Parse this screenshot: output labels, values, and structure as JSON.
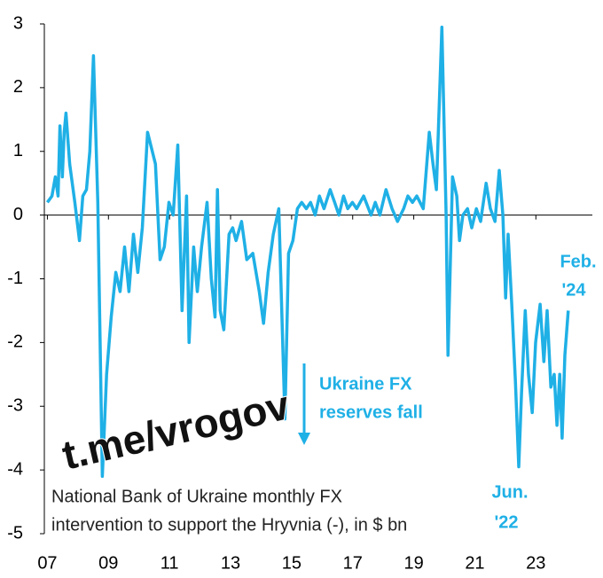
{
  "chart_data": {
    "type": "line",
    "color": "#1fb0e6",
    "x": [
      2007.0,
      2007.15,
      2007.26,
      2007.35,
      2007.41,
      2007.49,
      2007.55,
      2007.61,
      2007.73,
      2007.9,
      2008.05,
      2008.16,
      2008.28,
      2008.39,
      2008.51,
      2008.65,
      2008.8,
      2008.94,
      2009.09,
      2009.24,
      2009.38,
      2009.53,
      2009.67,
      2009.82,
      2009.96,
      2010.11,
      2010.28,
      2010.54,
      2010.69,
      2010.83,
      2010.98,
      2011.12,
      2011.27,
      2011.41,
      2011.56,
      2011.64,
      2011.79,
      2011.91,
      2012.05,
      2012.23,
      2012.37,
      2012.49,
      2012.57,
      2012.66,
      2012.78,
      2012.95,
      2013.07,
      2013.18,
      2013.36,
      2013.53,
      2013.73,
      2013.94,
      2014.08,
      2014.23,
      2014.4,
      2014.58,
      2014.78,
      2014.9,
      2015.04,
      2015.19,
      2015.33,
      2015.48,
      2015.62,
      2015.77,
      2015.91,
      2016.06,
      2016.26,
      2016.41,
      2016.55,
      2016.7,
      2016.84,
      2016.99,
      2017.13,
      2017.36,
      2017.6,
      2017.74,
      2017.89,
      2018.09,
      2018.29,
      2018.47,
      2018.67,
      2018.81,
      2018.96,
      2019.1,
      2019.31,
      2019.51,
      2019.63,
      2019.74,
      2019.92,
      2020.06,
      2020.12,
      2020.27,
      2020.41,
      2020.5,
      2020.61,
      2020.76,
      2020.9,
      2021.05,
      2021.19,
      2021.37,
      2021.51,
      2021.66,
      2021.8,
      2021.92,
      2022.01,
      2022.09,
      2022.21,
      2022.33,
      2022.44,
      2022.53,
      2022.65,
      2022.76,
      2022.88,
      2022.99,
      2023.14,
      2023.26,
      2023.37,
      2023.49,
      2023.6,
      2023.69,
      2023.78,
      2023.86,
      2023.95,
      2024.06
    ],
    "values": [
      0.2,
      0.3,
      0.6,
      0.3,
      1.4,
      0.6,
      1.3,
      1.6,
      0.8,
      0.2,
      -0.4,
      0.3,
      0.4,
      1.0,
      2.5,
      0.2,
      -4.1,
      -2.5,
      -1.6,
      -0.9,
      -1.2,
      -0.5,
      -1.2,
      -0.3,
      -0.9,
      -0.2,
      1.3,
      0.8,
      -0.7,
      -0.5,
      0.2,
      0,
      1.1,
      -1.5,
      0.3,
      -2.0,
      -0.5,
      -1.2,
      -0.5,
      0.2,
      -1.0,
      -1.6,
      0.4,
      -1.5,
      -1.8,
      -0.3,
      -0.2,
      -0.4,
      -0.1,
      -0.7,
      -0.6,
      -1.2,
      -1.7,
      -0.9,
      -0.3,
      0.1,
      -3.2,
      -0.6,
      -0.4,
      0.1,
      0.2,
      0.1,
      0.2,
      0,
      0.3,
      0.1,
      0.4,
      0.2,
      0,
      0.3,
      0.1,
      0.2,
      0.1,
      0.3,
      0,
      0.2,
      0,
      0.4,
      0.1,
      -0.1,
      0.1,
      0.3,
      0.2,
      0.3,
      0.1,
      1.3,
      0.8,
      0.4,
      2.95,
      0,
      -2.2,
      0.6,
      0.3,
      -0.4,
      0,
      0.1,
      -0.2,
      0.1,
      -0.1,
      0.5,
      0.1,
      -0.1,
      0.7,
      0,
      -1.3,
      -0.3,
      -1.4,
      -2.6,
      -3.95,
      -2.8,
      -1.5,
      -2.5,
      -3.1,
      -2.0,
      -1.4,
      -2.3,
      -1.5,
      -2.7,
      -2.5,
      -3.3,
      -2.5,
      -3.5,
      -2.2,
      -1.5
    ],
    "xlim": [
      2006.9,
      2024.85
    ],
    "xticks": [
      {
        "value": 2007,
        "label": "07"
      },
      {
        "value": 2009,
        "label": "09"
      },
      {
        "value": 2011,
        "label": "11"
      },
      {
        "value": 2013,
        "label": "13"
      },
      {
        "value": 2015,
        "label": "15"
      },
      {
        "value": 2017,
        "label": "17"
      },
      {
        "value": 2019,
        "label": "19"
      },
      {
        "value": 2021,
        "label": "21"
      },
      {
        "value": 2023,
        "label": "23"
      }
    ],
    "ylim": [
      -5,
      3
    ],
    "yticks": [
      -5,
      -4,
      -3,
      -2,
      -1,
      0,
      1,
      2,
      3
    ],
    "annotations": [
      "Ukraine FX",
      "reserves fall",
      "Jun.",
      "'22",
      "Feb.",
      "'24"
    ],
    "caption": [
      "National Bank of Ukraine monthly FX",
      "intervention to support the Hryvnia (-), in $ bn"
    ],
    "watermark": "t.me/vrogov"
  }
}
